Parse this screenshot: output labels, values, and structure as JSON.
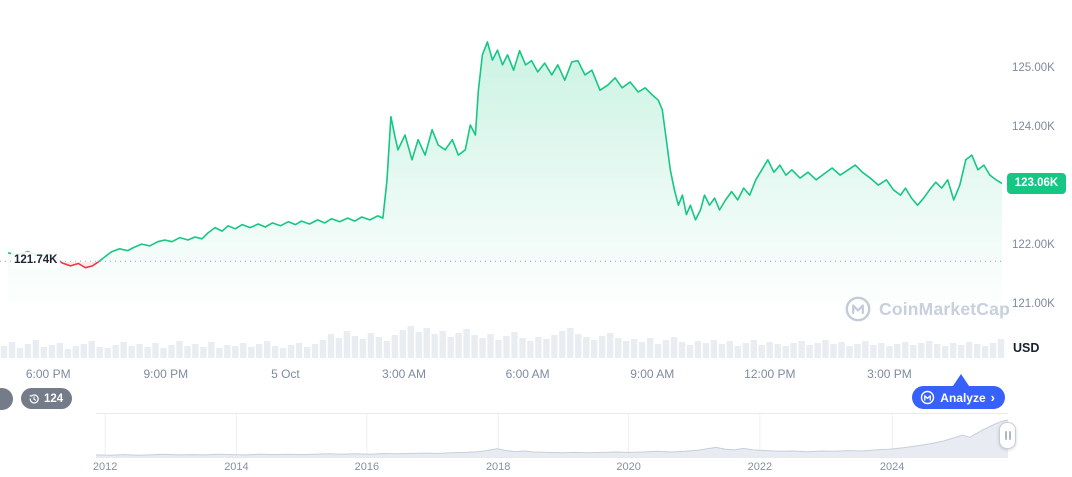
{
  "colors": {
    "accent_green": "#16c784",
    "accent_red": "#ea3943",
    "accent_blue": "#3861fb",
    "area_fill_green": "rgba(22,199,132,0.20)",
    "volume_gray": "#e9edf2",
    "axis_text": "#7f8aa0"
  },
  "ui": {
    "history_badge": {
      "count": "124"
    },
    "analyze_button": {
      "label": "Analyze",
      "chevron": "›"
    },
    "watermark": {
      "text": "CoinMarketCap"
    }
  },
  "chart_data": [
    {
      "type": "line",
      "name": "price-24h",
      "title": "",
      "unit_label": "USD",
      "current_price": 123.06,
      "current_price_label": "123.06K",
      "open_price": 121.74,
      "open_price_label": "121.74K",
      "ylim": [
        120.03,
        126.17
      ],
      "y_ticks": [
        {
          "label": "125.00K",
          "value": 125.0
        },
        {
          "label": "124.00K",
          "value": 124.0
        },
        {
          "label": "122.00K",
          "value": 122.0
        },
        {
          "label": "121.00K",
          "value": 121.0
        }
      ],
      "x_ticks": [
        {
          "label": "6:00 PM",
          "pct": 4.8
        },
        {
          "label": "9:00 PM",
          "pct": 16.5
        },
        {
          "label": "5 Oct",
          "pct": 28.4
        },
        {
          "label": "3:00 AM",
          "pct": 40.2
        },
        {
          "label": "6:00 AM",
          "pct": 52.5
        },
        {
          "label": "9:00 AM",
          "pct": 64.9
        },
        {
          "label": "12:00 PM",
          "pct": 76.6
        },
        {
          "label": "3:00 PM",
          "pct": 88.5
        }
      ],
      "series": [
        [
          0.8,
          121.88
        ],
        [
          1.8,
          121.85
        ],
        [
          2.8,
          121.9
        ],
        [
          3.8,
          121.83
        ],
        [
          4.8,
          121.86
        ],
        [
          5.5,
          121.8
        ],
        [
          6.2,
          121.71
        ],
        [
          7.0,
          121.66
        ],
        [
          7.8,
          121.7
        ],
        [
          8.5,
          121.63
        ],
        [
          9.2,
          121.66
        ],
        [
          9.8,
          121.73
        ],
        [
          10.4,
          121.81
        ],
        [
          11.1,
          121.9
        ],
        [
          11.9,
          121.95
        ],
        [
          12.7,
          121.92
        ],
        [
          13.4,
          121.98
        ],
        [
          14.1,
          122.03
        ],
        [
          14.9,
          122.0
        ],
        [
          15.7,
          122.07
        ],
        [
          16.4,
          122.1
        ],
        [
          17.1,
          122.07
        ],
        [
          17.9,
          122.14
        ],
        [
          18.7,
          122.1
        ],
        [
          19.4,
          122.15
        ],
        [
          20.1,
          122.12
        ],
        [
          20.7,
          122.22
        ],
        [
          21.4,
          122.31
        ],
        [
          22.1,
          122.25
        ],
        [
          22.7,
          122.34
        ],
        [
          23.4,
          122.29
        ],
        [
          24.1,
          122.36
        ],
        [
          24.9,
          122.31
        ],
        [
          25.7,
          122.37
        ],
        [
          26.4,
          122.32
        ],
        [
          27.1,
          122.39
        ],
        [
          27.9,
          122.34
        ],
        [
          28.7,
          122.41
        ],
        [
          29.4,
          122.36
        ],
        [
          30.0,
          122.42
        ],
        [
          30.8,
          122.37
        ],
        [
          31.6,
          122.44
        ],
        [
          32.3,
          122.39
        ],
        [
          33.0,
          122.46
        ],
        [
          33.8,
          122.41
        ],
        [
          34.6,
          122.47
        ],
        [
          35.3,
          122.42
        ],
        [
          36.0,
          122.49
        ],
        [
          36.8,
          122.44
        ],
        [
          37.6,
          122.51
        ],
        [
          38.1,
          122.47
        ],
        [
          38.5,
          123.1
        ],
        [
          38.9,
          124.19
        ],
        [
          39.3,
          123.85
        ],
        [
          39.6,
          123.63
        ],
        [
          40.3,
          123.88
        ],
        [
          41.0,
          123.46
        ],
        [
          41.6,
          123.8
        ],
        [
          42.3,
          123.54
        ],
        [
          43.0,
          123.97
        ],
        [
          43.6,
          123.71
        ],
        [
          44.3,
          123.63
        ],
        [
          45.0,
          123.8
        ],
        [
          45.6,
          123.54
        ],
        [
          46.3,
          123.63
        ],
        [
          46.8,
          124.05
        ],
        [
          47.3,
          123.88
        ],
        [
          47.6,
          124.64
        ],
        [
          48.0,
          125.24
        ],
        [
          48.5,
          125.46
        ],
        [
          49.0,
          125.15
        ],
        [
          49.5,
          125.32
        ],
        [
          50.0,
          125.07
        ],
        [
          50.5,
          125.24
        ],
        [
          51.1,
          124.98
        ],
        [
          51.7,
          125.31
        ],
        [
          52.3,
          125.07
        ],
        [
          52.9,
          125.14
        ],
        [
          53.5,
          124.95
        ],
        [
          54.2,
          125.1
        ],
        [
          54.9,
          124.9
        ],
        [
          55.5,
          125.07
        ],
        [
          56.2,
          124.81
        ],
        [
          56.9,
          125.12
        ],
        [
          57.5,
          125.14
        ],
        [
          58.2,
          124.9
        ],
        [
          58.9,
          124.98
        ],
        [
          59.7,
          124.64
        ],
        [
          60.5,
          124.73
        ],
        [
          61.2,
          124.85
        ],
        [
          61.9,
          124.68
        ],
        [
          62.7,
          124.78
        ],
        [
          63.5,
          124.61
        ],
        [
          64.2,
          124.68
        ],
        [
          64.9,
          124.56
        ],
        [
          65.5,
          124.47
        ],
        [
          65.9,
          124.31
        ],
        [
          66.3,
          123.8
        ],
        [
          66.7,
          123.29
        ],
        [
          67.1,
          122.95
        ],
        [
          67.5,
          122.69
        ],
        [
          67.9,
          122.86
        ],
        [
          68.3,
          122.53
        ],
        [
          68.7,
          122.69
        ],
        [
          69.2,
          122.44
        ],
        [
          69.7,
          122.61
        ],
        [
          70.1,
          122.86
        ],
        [
          70.6,
          122.69
        ],
        [
          71.1,
          122.81
        ],
        [
          71.6,
          122.61
        ],
        [
          72.2,
          122.78
        ],
        [
          72.8,
          122.92
        ],
        [
          73.4,
          122.78
        ],
        [
          74.0,
          122.98
        ],
        [
          74.6,
          122.86
        ],
        [
          75.2,
          123.12
        ],
        [
          75.8,
          123.29
        ],
        [
          76.4,
          123.46
        ],
        [
          77.0,
          123.25
        ],
        [
          77.6,
          123.37
        ],
        [
          78.2,
          123.2
        ],
        [
          78.8,
          123.29
        ],
        [
          79.6,
          123.15
        ],
        [
          80.4,
          123.25
        ],
        [
          81.2,
          123.12
        ],
        [
          82.0,
          123.22
        ],
        [
          82.8,
          123.32
        ],
        [
          83.6,
          123.2
        ],
        [
          84.4,
          123.29
        ],
        [
          85.1,
          123.37
        ],
        [
          85.8,
          123.25
        ],
        [
          86.6,
          123.15
        ],
        [
          87.4,
          123.03
        ],
        [
          88.2,
          123.12
        ],
        [
          88.9,
          122.95
        ],
        [
          89.6,
          122.86
        ],
        [
          90.1,
          122.98
        ],
        [
          90.7,
          122.81
        ],
        [
          91.3,
          122.69
        ],
        [
          91.9,
          122.81
        ],
        [
          92.5,
          122.95
        ],
        [
          93.1,
          123.08
        ],
        [
          93.7,
          122.98
        ],
        [
          94.3,
          123.12
        ],
        [
          94.9,
          122.78
        ],
        [
          95.5,
          123.03
        ],
        [
          96.1,
          123.46
        ],
        [
          96.7,
          123.54
        ],
        [
          97.3,
          123.29
        ],
        [
          97.9,
          123.37
        ],
        [
          98.5,
          123.2
        ],
        [
          99.1,
          123.12
        ],
        [
          99.7,
          123.06
        ]
      ],
      "volume": [
        12,
        16,
        10,
        14,
        18,
        11,
        13,
        15,
        9,
        12,
        14,
        17,
        11,
        10,
        13,
        16,
        12,
        14,
        11,
        15,
        10,
        13,
        17,
        12,
        14,
        11,
        16,
        10,
        13,
        12,
        15,
        11,
        14,
        17,
        12,
        10,
        13,
        15,
        11,
        14,
        18,
        24,
        20,
        27,
        22,
        19,
        25,
        21,
        17,
        23,
        28,
        32,
        26,
        30,
        24,
        27,
        21,
        25,
        29,
        23,
        20,
        24,
        18,
        22,
        26,
        20,
        17,
        21,
        19,
        23,
        27,
        30,
        24,
        21,
        18,
        22,
        25,
        20,
        17,
        19,
        16,
        20,
        14,
        18,
        21,
        16,
        13,
        17,
        15,
        18,
        14,
        17,
        12,
        15,
        18,
        13,
        16,
        14,
        12,
        15,
        17,
        13,
        15,
        18,
        14,
        16,
        12,
        14,
        17,
        13,
        15,
        12,
        14,
        16,
        13,
        15,
        17,
        14,
        12,
        15,
        13,
        16,
        14,
        12,
        15,
        19
      ]
    },
    {
      "type": "area",
      "name": "history-minimap",
      "x_ticks": [
        {
          "label": "2012",
          "pct": 1.0
        },
        {
          "label": "2014",
          "pct": 15.4
        },
        {
          "label": "2016",
          "pct": 29.7
        },
        {
          "label": "2018",
          "pct": 44.1
        },
        {
          "label": "2020",
          "pct": 58.4
        },
        {
          "label": "2022",
          "pct": 72.8
        },
        {
          "label": "2024",
          "pct": 87.3
        }
      ],
      "points": [
        [
          0,
          0.03
        ],
        [
          1.5,
          0.02
        ],
        [
          3,
          0.04
        ],
        [
          4.5,
          0.02
        ],
        [
          6,
          0.03
        ],
        [
          7.5,
          0.05
        ],
        [
          9,
          0.03
        ],
        [
          10.5,
          0.04
        ],
        [
          12,
          0.03
        ],
        [
          13.5,
          0.05
        ],
        [
          15,
          0.04
        ],
        [
          16.5,
          0.03
        ],
        [
          18,
          0.05
        ],
        [
          19.5,
          0.04
        ],
        [
          21,
          0.05
        ],
        [
          22.5,
          0.04
        ],
        [
          24,
          0.05
        ],
        [
          25.5,
          0.06
        ],
        [
          27,
          0.05
        ],
        [
          28.5,
          0.06
        ],
        [
          30,
          0.05
        ],
        [
          31.5,
          0.07
        ],
        [
          33,
          0.06
        ],
        [
          34.5,
          0.07
        ],
        [
          36,
          0.08
        ],
        [
          37.5,
          0.07
        ],
        [
          39,
          0.09
        ],
        [
          40.5,
          0.1
        ],
        [
          42,
          0.12
        ],
        [
          43,
          0.16
        ],
        [
          44,
          0.2
        ],
        [
          45,
          0.15
        ],
        [
          46,
          0.12
        ],
        [
          47,
          0.14
        ],
        [
          48,
          0.11
        ],
        [
          49.5,
          0.1
        ],
        [
          51,
          0.09
        ],
        [
          52.5,
          0.1
        ],
        [
          54,
          0.09
        ],
        [
          55.5,
          0.1
        ],
        [
          57,
          0.11
        ],
        [
          58.5,
          0.1
        ],
        [
          60,
          0.11
        ],
        [
          61.5,
          0.13
        ],
        [
          63,
          0.11
        ],
        [
          64.5,
          0.13
        ],
        [
          66,
          0.16
        ],
        [
          67,
          0.2
        ],
        [
          68,
          0.24
        ],
        [
          69,
          0.19
        ],
        [
          70,
          0.17
        ],
        [
          71,
          0.21
        ],
        [
          72,
          0.17
        ],
        [
          73.5,
          0.15
        ],
        [
          75,
          0.13
        ],
        [
          76.5,
          0.14
        ],
        [
          78,
          0.12
        ],
        [
          79.5,
          0.14
        ],
        [
          81,
          0.13
        ],
        [
          82.5,
          0.15
        ],
        [
          84,
          0.14
        ],
        [
          85.5,
          0.17
        ],
        [
          87,
          0.19
        ],
        [
          88.5,
          0.23
        ],
        [
          90,
          0.28
        ],
        [
          91.5,
          0.34
        ],
        [
          93,
          0.42
        ],
        [
          94,
          0.5
        ],
        [
          95,
          0.58
        ],
        [
          95.8,
          0.52
        ],
        [
          96.5,
          0.62
        ],
        [
          97.2,
          0.72
        ],
        [
          98,
          0.82
        ],
        [
          98.7,
          0.9
        ],
        [
          99.3,
          0.96
        ],
        [
          100,
          1.0
        ]
      ]
    }
  ]
}
